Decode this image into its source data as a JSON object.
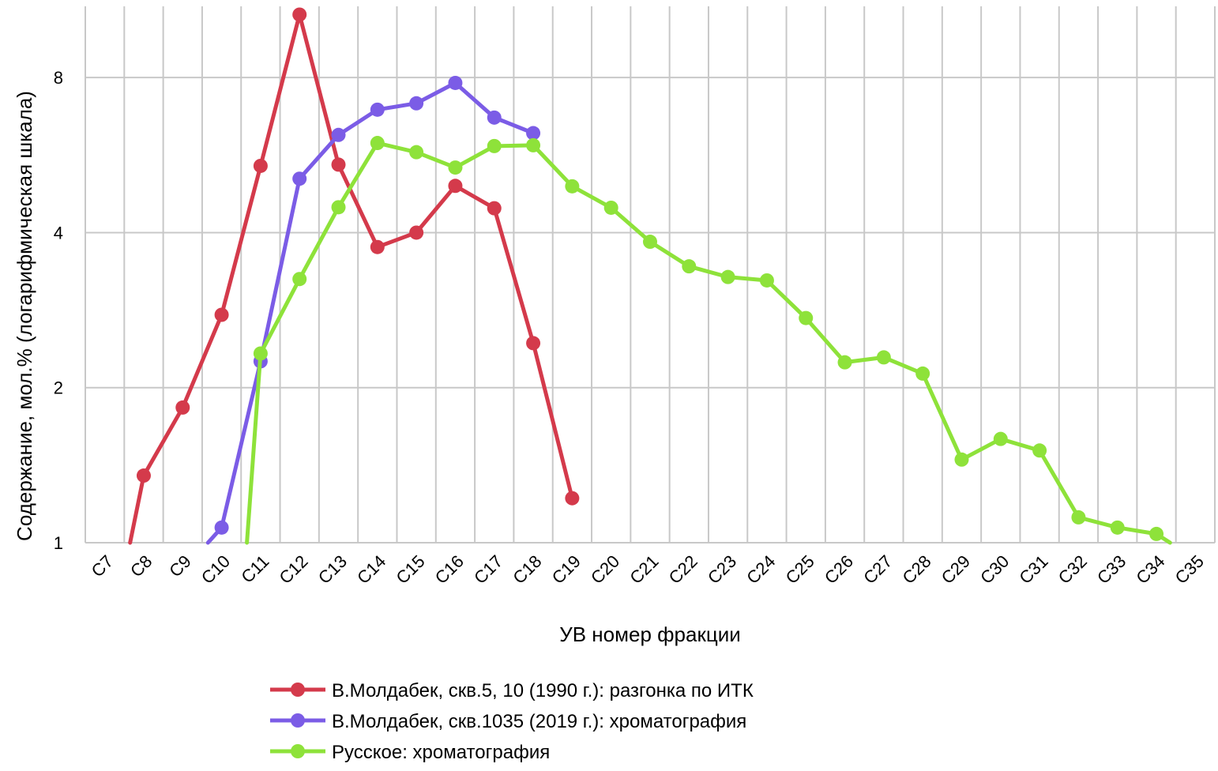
{
  "chart_data": {
    "type": "line",
    "title": "",
    "xlabel": "УВ номер фракции",
    "ylabel": "Содержание, мол.% (логарифмическая шкала)",
    "y_scale": "log2",
    "ylim": [
      1,
      11
    ],
    "y_ticks": [
      "1",
      "2",
      "4",
      "8"
    ],
    "grid": true,
    "legend_position": "bottom",
    "categories": [
      "C7",
      "C8",
      "C9",
      "C10",
      "C11",
      "C12",
      "C13",
      "C14",
      "C15",
      "C16",
      "C17",
      "C18",
      "C19",
      "C20",
      "C21",
      "C22",
      "C23",
      "C24",
      "C25",
      "C26",
      "C27",
      "C28",
      "C29",
      "C30",
      "C31",
      "C32",
      "C33",
      "C34",
      "C35"
    ],
    "series": [
      {
        "name": "В.Молдабек, скв.5, 10 (1990 г.): разгонка по ИТК",
        "color": "#d43a4b",
        "values": [
          null,
          1.35,
          1.83,
          2.77,
          5.39,
          10.6,
          5.42,
          3.75,
          4.0,
          4.93,
          4.46,
          2.44,
          1.22,
          null,
          null,
          null,
          null,
          null,
          null,
          null,
          null,
          null,
          null,
          null,
          null,
          null,
          null,
          null,
          null
        ]
      },
      {
        "name": "В.Молдабек, скв.1035 (2019 г.): хроматография",
        "color": "#7b5ce6",
        "values": [
          null,
          null,
          null,
          1.07,
          2.25,
          5.09,
          6.19,
          6.93,
          7.13,
          7.81,
          6.69,
          6.24,
          null,
          null,
          null,
          null,
          null,
          null,
          null,
          null,
          null,
          null,
          null,
          null,
          null,
          null,
          null,
          null,
          null
        ]
      },
      {
        "name": "Русское: хроматография",
        "color": "#8ee23a",
        "values": [
          null,
          null,
          null,
          null,
          2.33,
          3.25,
          4.48,
          5.97,
          5.73,
          5.35,
          5.89,
          5.91,
          4.92,
          4.47,
          3.84,
          3.44,
          3.28,
          3.23,
          2.73,
          2.24,
          2.29,
          2.13,
          1.45,
          1.59,
          1.51,
          1.12,
          1.07,
          1.04,
          null
        ]
      }
    ]
  }
}
